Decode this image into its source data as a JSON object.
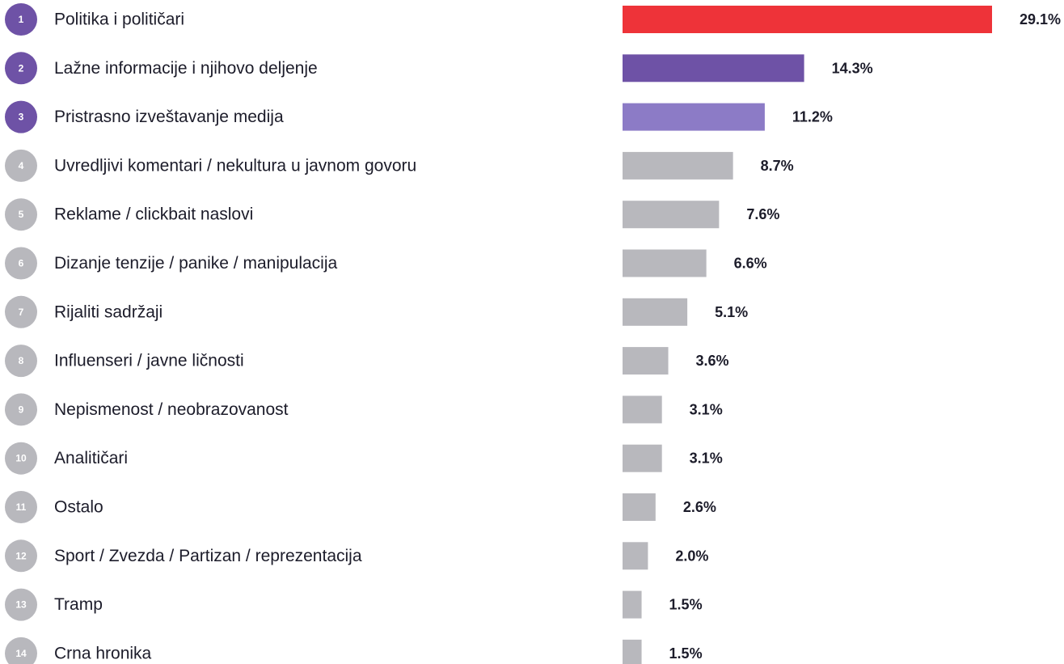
{
  "chart_data": {
    "type": "bar",
    "ranks": [
      1,
      2,
      3,
      4,
      5,
      6,
      7,
      8,
      9,
      10,
      11,
      12,
      13,
      14
    ],
    "categories": [
      "Politika i političari",
      "Lažne informacije i njihovo deljenje",
      "Pristrasno izveštavanje medija",
      "Uvredljivi komentari / nekultura u javnom govoru",
      "Reklame / clickbait naslovi",
      "Dizanje tenzije / panike / manipulacija",
      "Rijaliti sadržaji",
      "Influenseri / javne ličnosti",
      "Nepismenost / neobrazovanost",
      "Analitičari",
      "Ostalo",
      "Sport / Zvezda / Partizan / reprezentacija",
      "Tramp",
      "Crna hronika"
    ],
    "values": [
      29.1,
      14.3,
      11.2,
      8.7,
      7.6,
      6.6,
      5.1,
      3.6,
      3.1,
      3.1,
      2.6,
      2.0,
      1.5,
      1.5
    ],
    "value_labels": [
      "29.1%",
      "14.3%",
      "11.2%",
      "8.7%",
      "7.6%",
      "6.6%",
      "5.1%",
      "3.6%",
      "3.1%",
      "3.1%",
      "2.6%",
      "2.0%",
      "1.5%",
      "1.5%"
    ],
    "colors": [
      "#ee3339",
      "#6e52a6",
      "#8c7bc6",
      "#b8b8bd",
      "#b8b8bd",
      "#b8b8bd",
      "#b8b8bd",
      "#b8b8bd",
      "#b8b8bd",
      "#b8b8bd",
      "#b8b8bd",
      "#b8b8bd",
      "#b8b8bd",
      "#b8b8bd"
    ],
    "badge_colors": [
      "#6e52a6",
      "#6e52a6",
      "#6e52a6",
      "#b8b8bd",
      "#b8b8bd",
      "#b8b8bd",
      "#b8b8bd",
      "#b8b8bd",
      "#b8b8bd",
      "#b8b8bd",
      "#b8b8bd",
      "#b8b8bd",
      "#b8b8bd",
      "#b8b8bd"
    ]
  }
}
